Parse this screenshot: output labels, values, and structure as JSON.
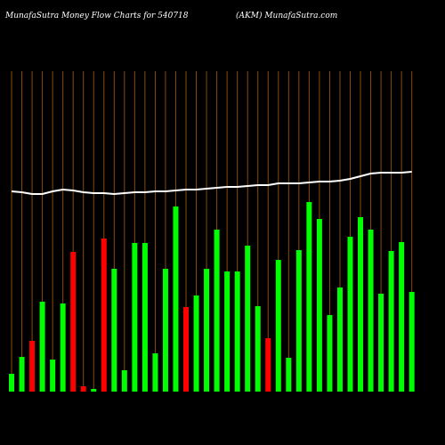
{
  "chart_data": {
    "type": "bar",
    "title": "MunafaSutra  Money Flow  Charts for 540718",
    "subtitle": "(AKM) MunafaSutra.com",
    "ylim": [
      0,
      360
    ],
    "series": [
      {
        "name": "Money Flow",
        "colors": [
          "#00ff00",
          "#00ff00",
          "#ff0000",
          "#00ff00",
          "#00ff00",
          "#00ff00",
          "#ff0000",
          "#ff0000",
          "#00ff00",
          "#ff0000",
          "#00ff00",
          "#00ff00",
          "#00ff00",
          "#00ff00",
          "#00ff00",
          "#00ff00",
          "#00ff00",
          "#ff0000",
          "#00ff00",
          "#00ff00",
          "#00ff00",
          "#00ff00",
          "#00ff00",
          "#00ff00",
          "#00ff00",
          "#ff0000",
          "#00ff00",
          "#00ff00",
          "#00ff00",
          "#00ff00",
          "#00ff00",
          "#00ff00",
          "#00ff00",
          "#00ff00",
          "#00ff00",
          "#00ff00",
          "#00ff00",
          "#00ff00",
          "#00ff00",
          "#00ff00"
        ],
        "values": [
          20,
          39,
          57,
          101,
          36,
          99,
          157,
          6,
          3,
          172,
          138,
          24,
          167,
          167,
          43,
          138,
          208,
          95,
          108,
          138,
          182,
          135,
          135,
          164,
          96,
          60,
          148,
          38,
          159,
          213,
          194,
          86,
          117,
          174,
          196,
          182,
          110,
          158,
          168,
          112
        ]
      },
      {
        "name": "Price",
        "type": "line",
        "color": "#ffffff",
        "values": [
          225,
          224,
          222,
          222,
          225,
          227,
          226,
          224,
          223,
          223,
          222,
          223,
          224,
          224,
          225,
          225,
          226,
          227,
          227,
          228,
          229,
          230,
          230,
          231,
          232,
          232,
          234,
          234,
          234,
          235,
          236,
          236,
          237,
          239,
          242,
          245,
          246,
          246,
          246,
          247
        ]
      }
    ]
  }
}
